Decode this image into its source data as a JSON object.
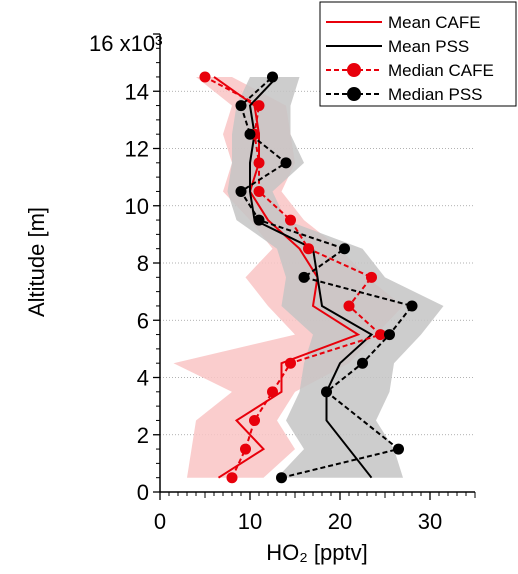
{
  "chart_data": {
    "type": "line",
    "xlabel": "HO₂ [pptv]",
    "ylabel": "Altitude [m]",
    "y_multiplier_label": "x10³",
    "xlim": [
      0,
      35
    ],
    "ylim": [
      0,
      16000
    ],
    "xticks": [
      0,
      10,
      20,
      30
    ],
    "yticks": [
      0,
      2,
      4,
      6,
      8,
      10,
      12,
      14,
      16
    ],
    "ytick_labels": [
      "0",
      "2",
      "4",
      "6",
      "8",
      "10",
      "12",
      "14",
      "16"
    ],
    "grid": "horizontal dotted at y ticks",
    "legend_position": "top-right",
    "colors": {
      "cafe": "#e8000b",
      "pss": "#000000",
      "cafe_range": "#f9c4c4",
      "pss_range": "#c4c4c4"
    },
    "series": [
      {
        "name": "Mean CAFE",
        "style": "solid",
        "color": "#e8000b",
        "points": [
          [
            6.5,
            500
          ],
          [
            11.5,
            1500
          ],
          [
            8.5,
            2500
          ],
          [
            13.5,
            3500
          ],
          [
            13.5,
            4500
          ],
          [
            22.0,
            5500
          ],
          [
            17.0,
            6500
          ],
          [
            17.5,
            7500
          ],
          [
            15.5,
            8500
          ],
          [
            12.0,
            9500
          ],
          [
            10.0,
            10500
          ],
          [
            11.0,
            11500
          ],
          [
            11.0,
            12500
          ],
          [
            10.5,
            13500
          ],
          [
            6.0,
            14500
          ]
        ]
      },
      {
        "name": "Mean PSS",
        "style": "solid",
        "color": "#000000",
        "points": [
          [
            23.5,
            500
          ],
          [
            21.0,
            1500
          ],
          [
            18.5,
            2500
          ],
          [
            18.5,
            3500
          ],
          [
            20.0,
            4500
          ],
          [
            23.5,
            5500
          ],
          [
            18.0,
            6500
          ],
          [
            17.5,
            7500
          ],
          [
            17.0,
            8500
          ],
          [
            10.5,
            9500
          ],
          [
            10.0,
            10500
          ],
          [
            10.0,
            11500
          ],
          [
            10.5,
            12500
          ],
          [
            10.0,
            13500
          ],
          [
            13.0,
            14500
          ]
        ]
      },
      {
        "name": "Median CAFE",
        "style": "dashed-marker",
        "color": "#e8000b",
        "points": [
          [
            8.0,
            500
          ],
          [
            9.5,
            1500
          ],
          [
            10.5,
            2500
          ],
          [
            12.5,
            3500
          ],
          [
            14.5,
            4500
          ],
          [
            24.5,
            5500
          ],
          [
            21.0,
            6500
          ],
          [
            23.5,
            7500
          ],
          [
            16.5,
            8500
          ],
          [
            14.5,
            9500
          ],
          [
            11.0,
            10500
          ],
          [
            11.0,
            11500
          ],
          [
            10.5,
            12500
          ],
          [
            11.0,
            13500
          ],
          [
            5.0,
            14500
          ]
        ]
      },
      {
        "name": "Median PSS",
        "style": "dashed-marker",
        "color": "#000000",
        "points": [
          [
            13.5,
            500
          ],
          [
            26.5,
            1500
          ],
          [
            18.5,
            3500
          ],
          [
            22.5,
            4500
          ],
          [
            25.5,
            5500
          ],
          [
            28.0,
            6500
          ],
          [
            16.0,
            7500
          ],
          [
            20.5,
            8500
          ],
          [
            11.0,
            9500
          ],
          [
            9.0,
            10500
          ],
          [
            14.0,
            11500
          ],
          [
            10.0,
            12500
          ],
          [
            9.0,
            13500
          ],
          [
            12.5,
            14500
          ]
        ]
      }
    ],
    "ranges": [
      {
        "series": "CAFE",
        "color": "#f9c4c4",
        "low": [
          [
            3.0,
            500
          ],
          [
            3.5,
            1500
          ],
          [
            4.0,
            2500
          ],
          [
            8.0,
            3500
          ],
          [
            1.5,
            4500
          ],
          [
            15.0,
            5500
          ],
          [
            12.0,
            6500
          ],
          [
            9.5,
            7500
          ],
          [
            12.5,
            8500
          ],
          [
            10.0,
            9500
          ],
          [
            7.0,
            10500
          ],
          [
            8.0,
            11500
          ],
          [
            7.0,
            12500
          ],
          [
            8.0,
            13500
          ],
          [
            4.0,
            14500
          ]
        ],
        "high": [
          [
            11.5,
            500
          ],
          [
            15.0,
            1500
          ],
          [
            13.0,
            2500
          ],
          [
            15.0,
            3500
          ],
          [
            21.0,
            4500
          ],
          [
            24.0,
            5500
          ],
          [
            27.0,
            6500
          ],
          [
            23.0,
            7500
          ],
          [
            20.0,
            8500
          ],
          [
            16.0,
            9500
          ],
          [
            13.5,
            10500
          ],
          [
            15.0,
            11500
          ],
          [
            14.5,
            12500
          ],
          [
            14.0,
            13500
          ],
          [
            8.0,
            14500
          ]
        ]
      },
      {
        "series": "PSS",
        "color": "#c4c4c4",
        "low": [
          [
            13.0,
            500
          ],
          [
            16.0,
            1500
          ],
          [
            14.0,
            2500
          ],
          [
            15.5,
            3500
          ],
          [
            16.0,
            4500
          ],
          [
            17.0,
            5500
          ],
          [
            13.5,
            6500
          ],
          [
            14.0,
            7500
          ],
          [
            13.0,
            8500
          ],
          [
            8.5,
            9500
          ],
          [
            7.5,
            10500
          ],
          [
            8.0,
            11500
          ],
          [
            8.0,
            12500
          ],
          [
            8.5,
            13500
          ],
          [
            10.0,
            14500
          ]
        ],
        "high": [
          [
            27.0,
            500
          ],
          [
            26.0,
            1500
          ],
          [
            24.0,
            2500
          ],
          [
            25.5,
            3500
          ],
          [
            26.0,
            4500
          ],
          [
            29.0,
            5500
          ],
          [
            31.5,
            6500
          ],
          [
            25.0,
            7500
          ],
          [
            22.5,
            8500
          ],
          [
            14.0,
            9500
          ],
          [
            12.5,
            10500
          ],
          [
            16.0,
            11500
          ],
          [
            14.5,
            12500
          ],
          [
            14.5,
            13500
          ],
          [
            15.5,
            14500
          ]
        ]
      }
    ]
  }
}
